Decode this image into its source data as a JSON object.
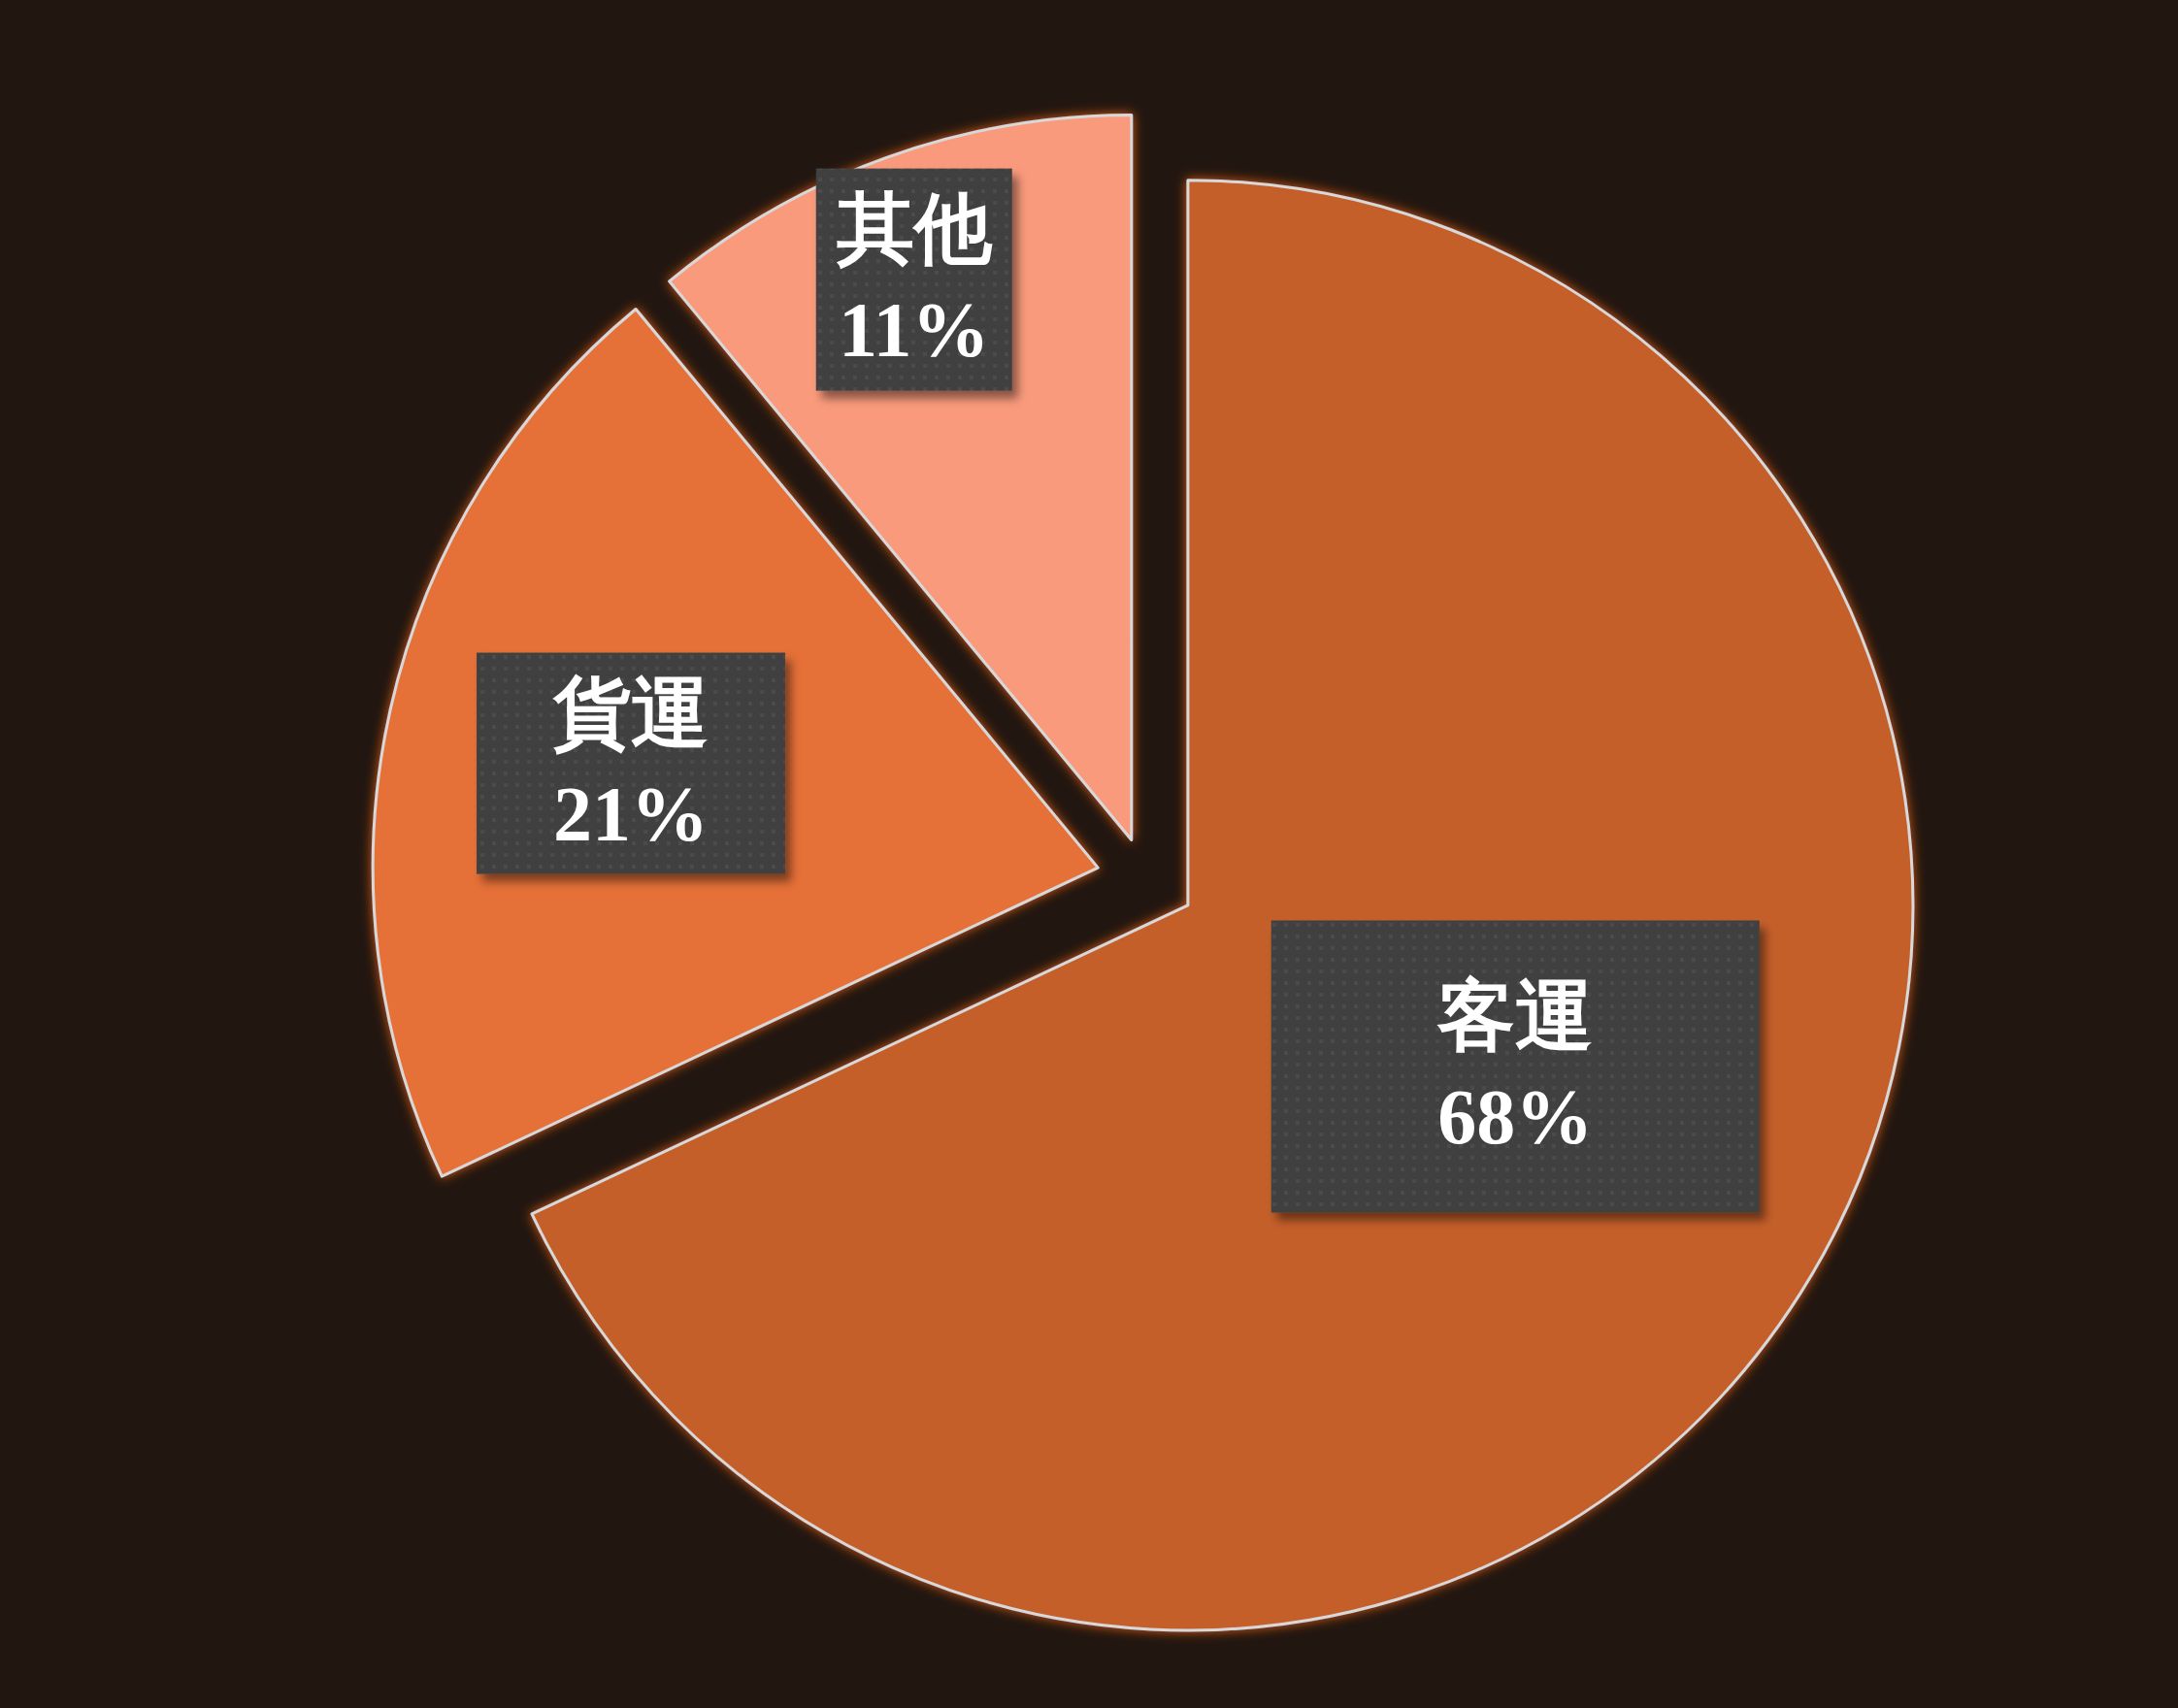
{
  "chart_data": {
    "type": "pie",
    "categories": [
      "客運",
      "貨運",
      "其他"
    ],
    "values": [
      68,
      21,
      11
    ],
    "value_labels": [
      "68%",
      "21%",
      "11%"
    ],
    "colors": [
      "#c45f2c",
      "#e57037",
      "#f99a7c"
    ]
  }
}
